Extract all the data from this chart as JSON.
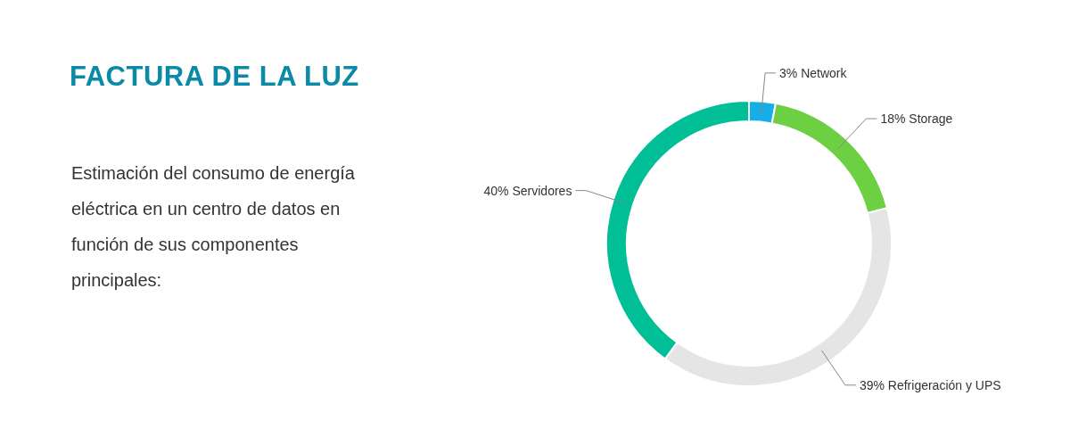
{
  "chart_data": {
    "type": "donut",
    "title": "FACTURA DE LA LUZ",
    "subtitle": "Estimación del consumo de energía eléctrica en un centro de datos en función de sus componentes principales:",
    "categories": [
      "Network",
      "Storage",
      "Refrigeración y UPS",
      "Servidores"
    ],
    "values": [
      3,
      18,
      39,
      40
    ],
    "colors": [
      "#17aee8",
      "#6dcf42",
      "#e4e5e4",
      "#00bf97"
    ],
    "value_labels": [
      "3%",
      "18%",
      "39%",
      "40%"
    ]
  }
}
